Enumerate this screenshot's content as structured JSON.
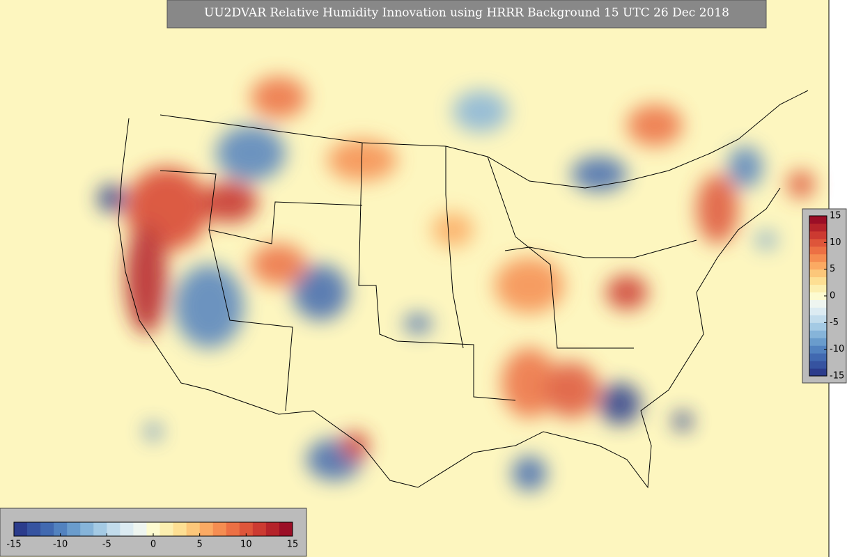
{
  "title": "UU2DVAR Relative Humidity Innovation using HRRR Background 15 UTC 26 Dec 2018",
  "colors": [
    "#2b3c8c",
    "#3653a0",
    "#4169b0",
    "#5282bf",
    "#6a9ccc",
    "#86b4d9",
    "#a4cae4",
    "#c2dcec",
    "#dcebf2",
    "#eef5f0",
    "#fdfbd0",
    "#fcefb0",
    "#fddf93",
    "#fcc77a",
    "#fbaa63",
    "#f58d51",
    "#ec7044",
    "#de553a",
    "#cc3a31",
    "#b5232a",
    "#9b0e26"
  ],
  "colorbars": [
    {
      "orientation": "horizontal",
      "clim": [
        -15,
        15
      ],
      "ticks": [
        -15,
        -10,
        -5,
        0,
        5,
        10,
        15
      ]
    },
    {
      "orientation": "vertical",
      "clim": [
        -15,
        15
      ],
      "ticks": [
        -15,
        -10,
        -5,
        0,
        5,
        10,
        15
      ]
    }
  ]
}
